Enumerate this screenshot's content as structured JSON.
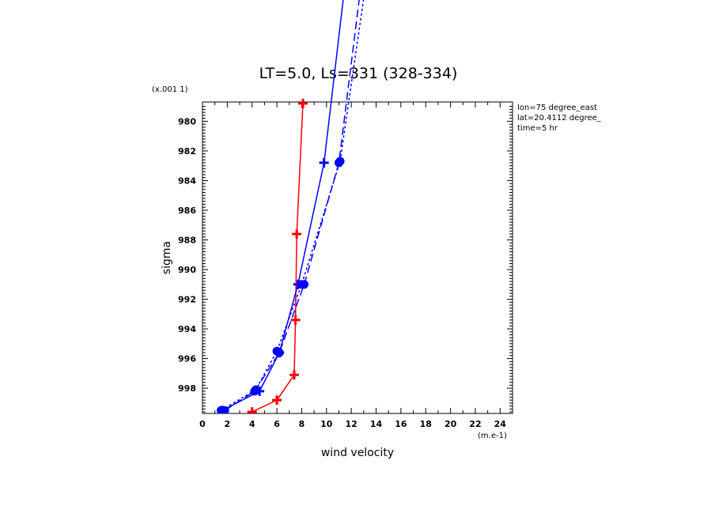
{
  "chart_data": {
    "type": "line",
    "title": "LT=5.0, Ls=331 (328-334)",
    "xlabel": "wind velocity",
    "ylabel": "sigma",
    "x_unit_label": "(m.e-1)",
    "y_unit_label": "(x.001 1)",
    "annotations": [
      "lon=75 degree_east",
      "lat=20.4112 degree_",
      "time=5 hr"
    ],
    "xlim": [
      0,
      25
    ],
    "ylim": [
      999.7,
      978.7
    ],
    "x_ticks": [
      "0",
      "2",
      "4",
      "6",
      "8",
      "10",
      "12",
      "14",
      "16",
      "18",
      "20",
      "22",
      "24"
    ],
    "y_ticks": [
      "980",
      "982",
      "984",
      "986",
      "988",
      "990",
      "992",
      "994",
      "996",
      "998"
    ],
    "grid": false,
    "series": [
      {
        "color": "#ff0000",
        "style": "solid",
        "marker": "plus",
        "x": [
          4.0,
          6.0,
          7.4,
          7.5,
          7.6,
          8.1
        ],
        "y": [
          999.6,
          998.8,
          997.1,
          993.4,
          987.6,
          978.8
        ]
      },
      {
        "color": "#0000ff",
        "style": "solid",
        "marker": "plus",
        "x": [
          1.6,
          4.6,
          6.2,
          7.7,
          9.8,
          11.6
        ],
        "y": [
          999.5,
          998.2,
          995.6,
          991.0,
          982.8,
          970.0
        ]
      },
      {
        "color": "#0000ff",
        "style": "dashed",
        "marker": "circle",
        "x": [
          1.8,
          4.2,
          6.2,
          8.2,
          11.0,
          12.9
        ],
        "y": [
          999.5,
          998.2,
          995.6,
          991.0,
          982.8,
          970.0
        ]
      },
      {
        "color": "#0000ff",
        "style": "dotted",
        "marker": "circle",
        "x": [
          1.5,
          4.3,
          6.0,
          8.0,
          11.1,
          13.3
        ],
        "y": [
          999.5,
          998.1,
          995.5,
          991.0,
          982.7,
          970.0
        ]
      }
    ]
  }
}
